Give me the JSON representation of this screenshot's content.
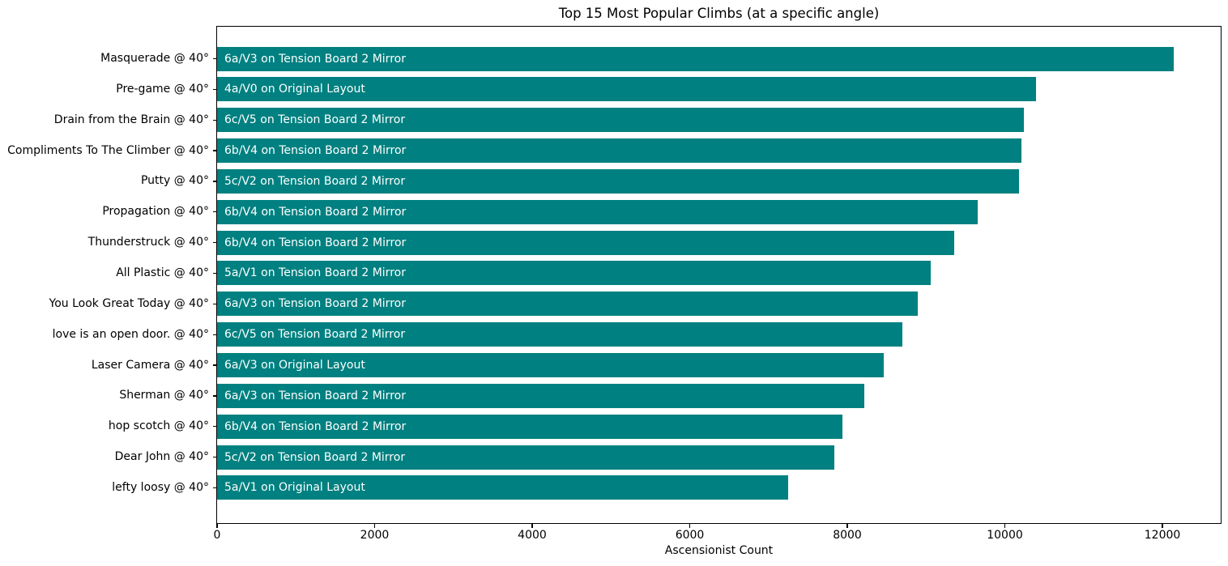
{
  "chart_data": {
    "type": "bar",
    "orientation": "horizontal",
    "title": "Top 15 Most Popular Climbs (at a specific angle)",
    "xlabel": "Ascensionist Count",
    "ylabel": "",
    "xlim": [
      0,
      12740
    ],
    "xticks": [
      0,
      2000,
      4000,
      6000,
      8000,
      10000,
      12000
    ],
    "grid": false,
    "legend": false,
    "bar_color": "#008080",
    "bar_label_color": "#ffffff",
    "axis_color": "#000000",
    "categories": [
      "Masquerade @ 40°",
      "Pre-game @ 40°",
      "Drain from the Brain @ 40°",
      "Compliments To The Climber @ 40°",
      "Putty @ 40°",
      "Propagation @ 40°",
      "Thunderstruck @ 40°",
      "All Plastic @ 40°",
      "You Look Great Today @ 40°",
      "love is an open door. @ 40°",
      "Laser Camera @ 40°",
      "Sherman @ 40°",
      "hop scotch @ 40°",
      "Dear John @ 40°",
      "lefty loosy @ 40°"
    ],
    "values": [
      12140,
      10390,
      10240,
      10210,
      10180,
      9650,
      9360,
      9060,
      8890,
      8700,
      8460,
      8220,
      7940,
      7830,
      7250
    ],
    "bar_labels": [
      "6a/V3 on Tension Board 2 Mirror",
      "4a/V0 on Original Layout",
      "6c/V5 on Tension Board 2 Mirror",
      "6b/V4 on Tension Board 2 Mirror",
      "5c/V2 on Tension Board 2 Mirror",
      "6b/V4 on Tension Board 2 Mirror",
      "6b/V4 on Tension Board 2 Mirror",
      "5a/V1 on Tension Board 2 Mirror",
      "6a/V3 on Tension Board 2 Mirror",
      "6c/V5 on Tension Board 2 Mirror",
      "6a/V3 on Original Layout",
      "6a/V3 on Tension Board 2 Mirror",
      "6b/V4 on Tension Board 2 Mirror",
      "5c/V2 on Tension Board 2 Mirror",
      "5a/V1 on Original Layout"
    ]
  }
}
